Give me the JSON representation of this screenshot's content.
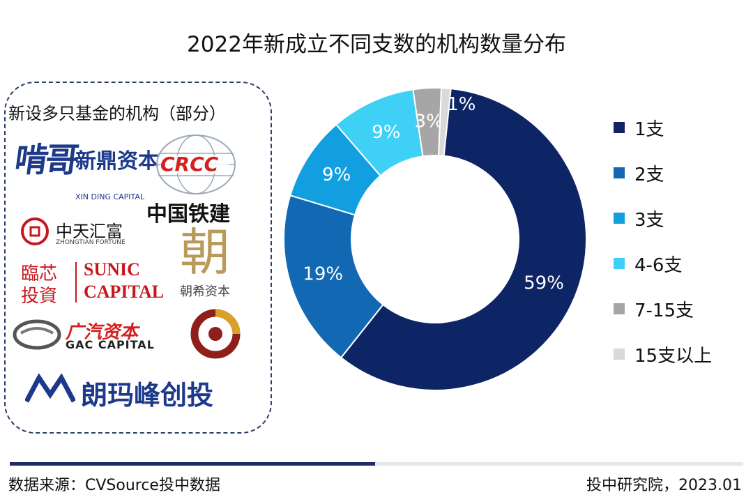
{
  "title": "2022年新成立不同支数的机构数量分布",
  "panel": {
    "title": "新设多只基金的机构（部分）",
    "logos": {
      "xinding_mark": "啃哥",
      "xinding_cn": "新鼎资本",
      "xinding_en": "XIN DING CAPITAL",
      "crcc_badge": "CRCC",
      "crcc_cn": "中国铁建",
      "zhongtian_cn": "中天汇富",
      "zhongtian_en": "ZHONGTIAN FORTUNE",
      "zhaoxi_seal": "朝",
      "zhaoxi_cn": "朝希资本",
      "linxin_cn_1": "臨芯",
      "linxin_cn_2": "投資",
      "sunic_1": "SUNIC",
      "sunic_2": "CAPITAL",
      "gac_cn": "广汽资本",
      "gac_en": "GAC CAPITAL",
      "langma_cn": "朗玛峰创投"
    }
  },
  "chart_data": {
    "type": "pie",
    "categories": [
      "1支",
      "2支",
      "3支",
      "4-6支",
      "7-15支",
      "15支以上"
    ],
    "values": [
      59,
      19,
      9,
      9,
      3,
      1
    ],
    "labels": [
      "59%",
      "19%",
      "9%",
      "9%",
      "3%",
      "1%"
    ],
    "colors": [
      "#0d2564",
      "#1268b3",
      "#119fe0",
      "#3fd0f6",
      "#a6a6a6",
      "#d9d9d9"
    ],
    "donut": true,
    "legend": "right"
  },
  "footer": {
    "source": "数据来源：CVSource投中数据",
    "credit": "投中研究院，2023.01"
  }
}
